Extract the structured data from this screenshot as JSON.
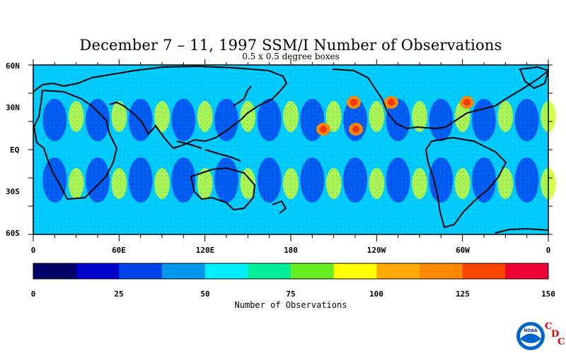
{
  "header": {
    "title": "December 7 – 11, 1997 SSM/I Number of Observations",
    "subtitle": "0.5 x 0.5 degree boxes"
  },
  "map": {
    "lat_labels": [
      "60N",
      "30N",
      "EQ",
      "30S",
      "60S"
    ],
    "lon_labels": [
      "0",
      "60E",
      "120E",
      "180",
      "120W",
      "60W",
      "0"
    ]
  },
  "colorbar": {
    "label": "Number of Observations",
    "tick_labels": [
      "0",
      "25",
      "50",
      "75",
      "100",
      "125",
      "150"
    ],
    "colors": [
      "#000066",
      "#0000cc",
      "#0044ee",
      "#0099ee",
      "#00eeff",
      "#00ee99",
      "#66ee22",
      "#ffff00",
      "#ffaa00",
      "#ff8800",
      "#ff4400",
      "#ee0033"
    ]
  },
  "logo": {
    "agency": "NOAA",
    "cdc": [
      "C",
      "D",
      "C"
    ]
  }
}
